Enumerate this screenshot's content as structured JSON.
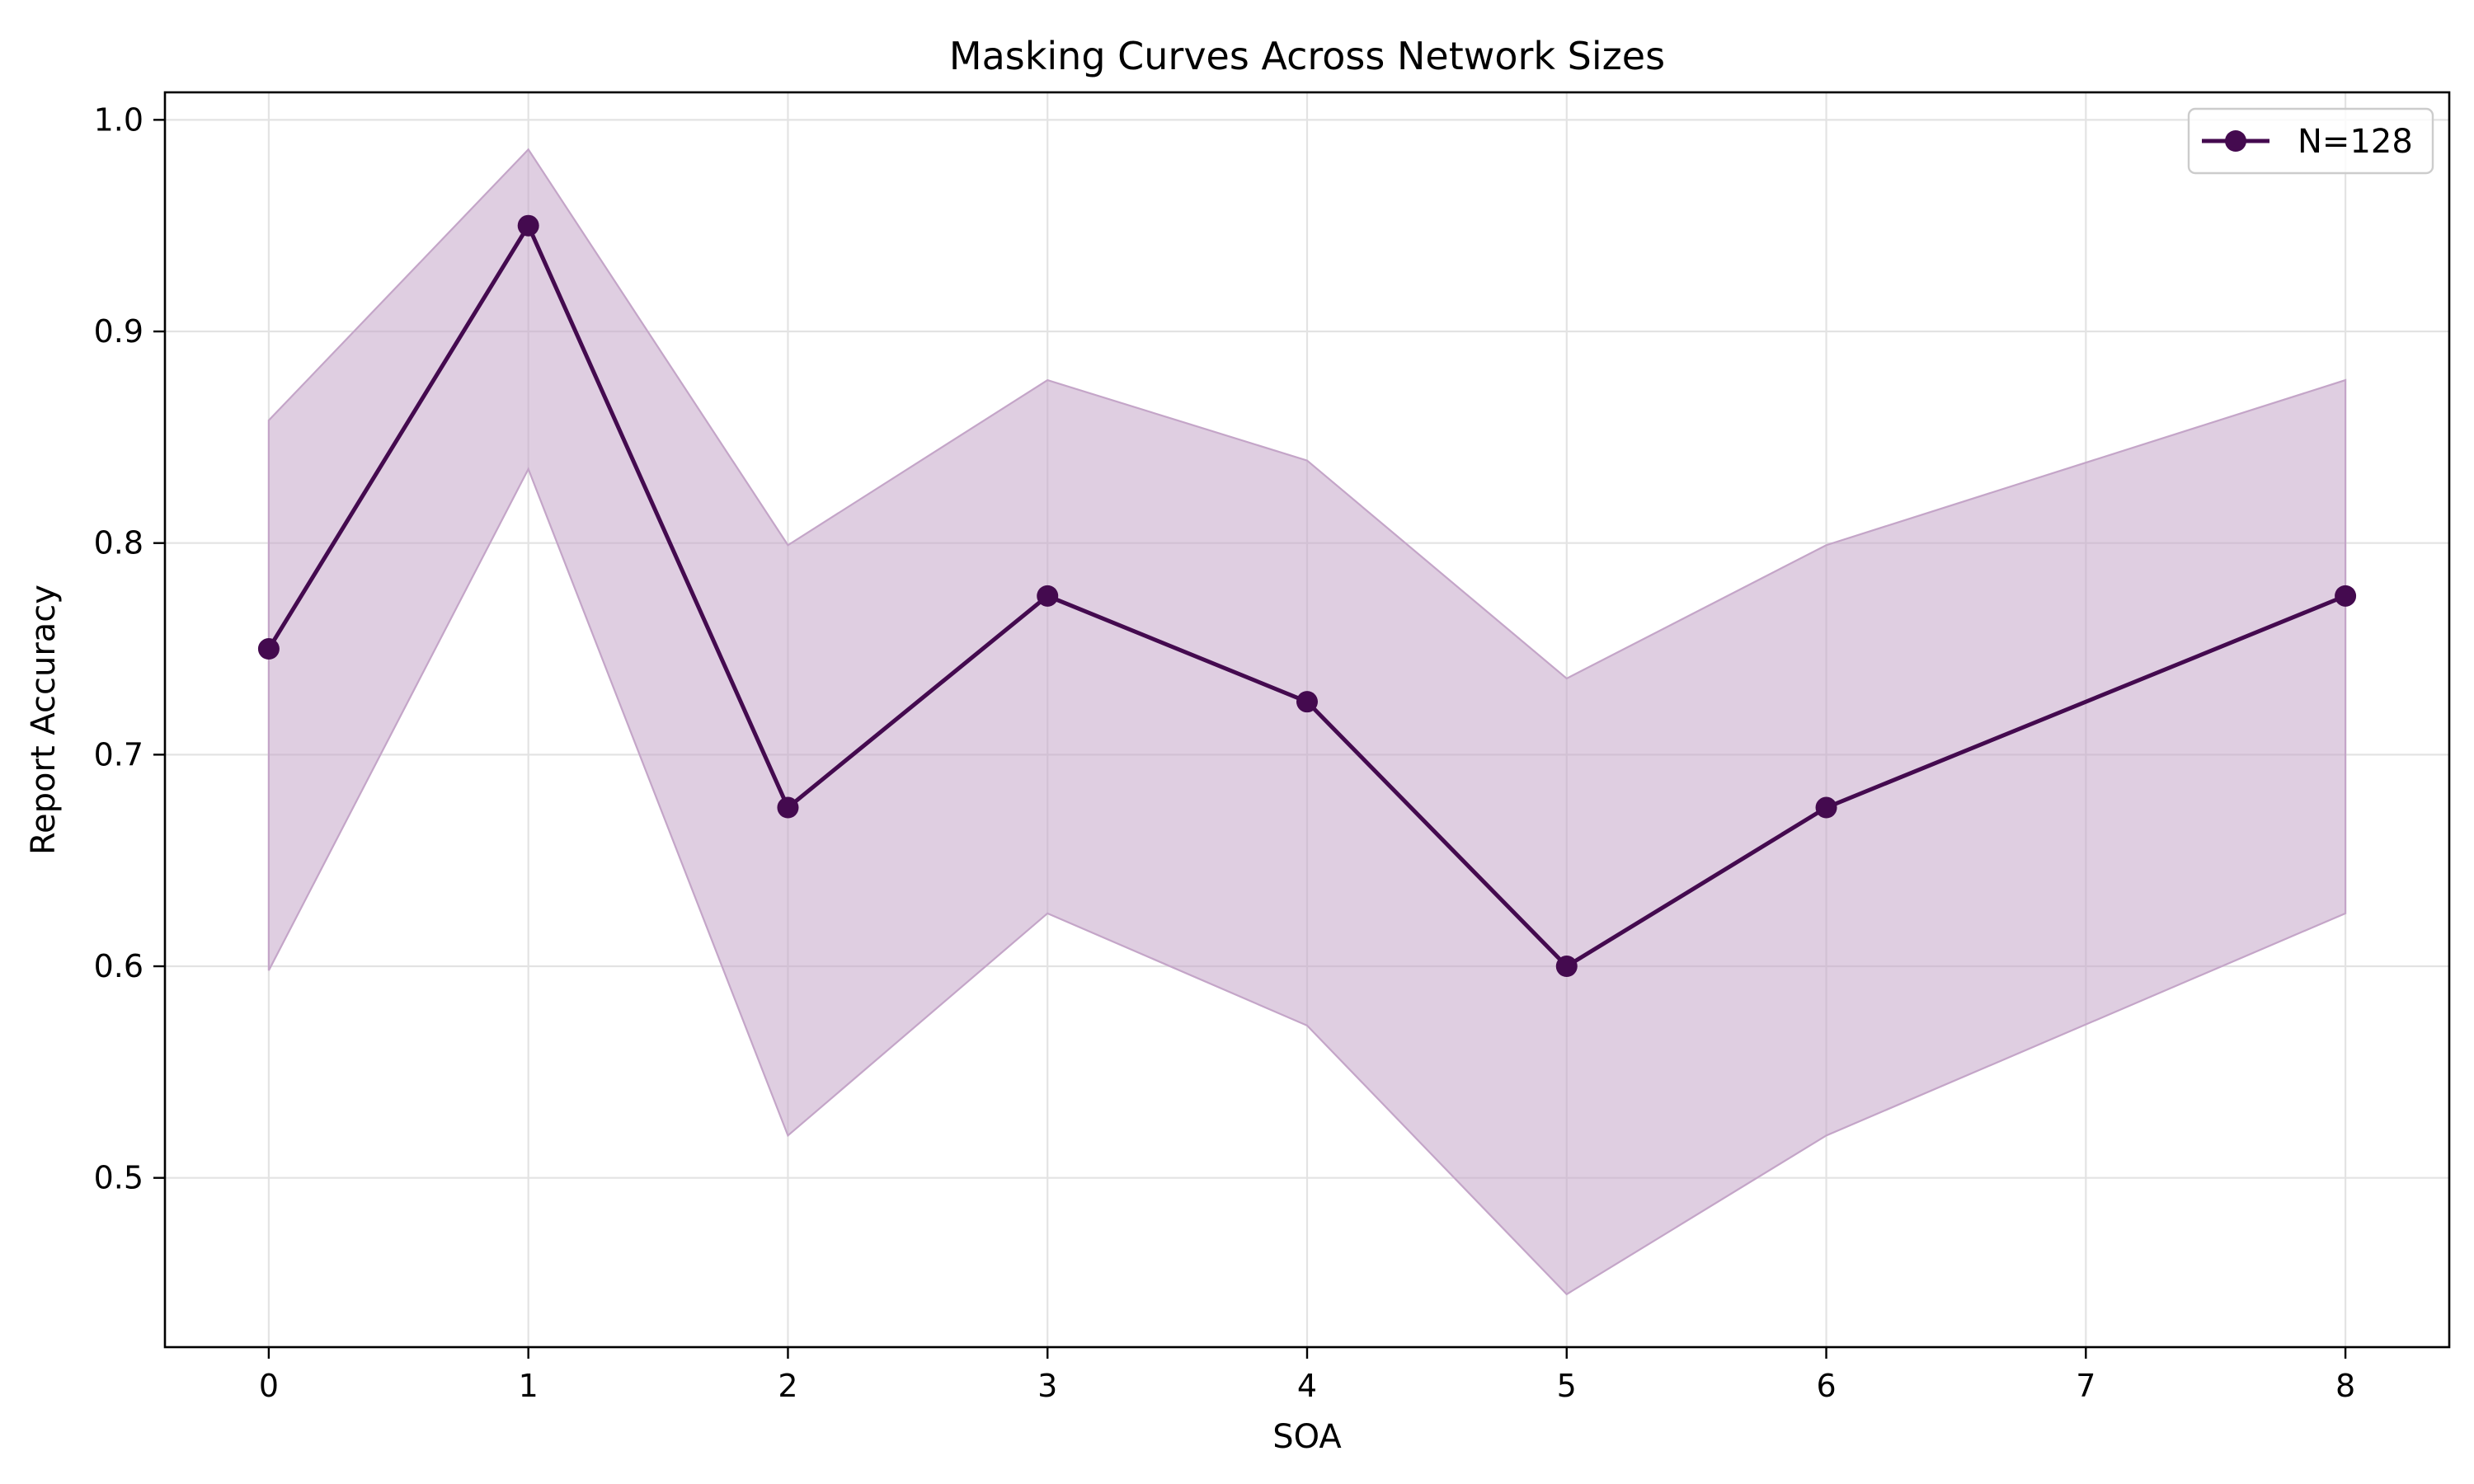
{
  "chart_data": {
    "type": "line",
    "title": "Masking Curves Across Network Sizes",
    "xlabel": "SOA",
    "ylabel": "Report Accuracy",
    "xlim": [
      -0.4,
      8.4
    ],
    "ylim": [
      0.42,
      1.013
    ],
    "xticks": [
      0,
      1,
      2,
      3,
      4,
      5,
      6,
      7,
      8
    ],
    "yticks": [
      0.5,
      0.6,
      0.7,
      0.8,
      0.9,
      1.0
    ],
    "ytick_labels": [
      "0.5",
      "0.6",
      "0.7",
      "0.8",
      "0.9",
      "1.0"
    ],
    "grid": true,
    "legend_position": "top-right",
    "series": [
      {
        "name": "N=128",
        "color": "#440a4f",
        "band_color": "#c4a5c8",
        "marker": "circle",
        "x": [
          0,
          1,
          2,
          3,
          4,
          5,
          6,
          8
        ],
        "y": [
          0.75,
          0.95,
          0.675,
          0.775,
          0.725,
          0.6,
          0.675,
          0.775
        ],
        "band_upper": [
          0.858,
          0.986,
          0.799,
          0.877,
          0.839,
          0.736,
          0.799,
          0.877
        ],
        "band_lower": [
          0.598,
          0.835,
          0.52,
          0.625,
          0.572,
          0.445,
          0.52,
          0.625
        ]
      }
    ]
  }
}
